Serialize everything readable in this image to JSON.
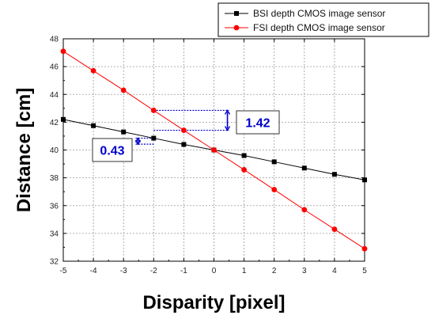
{
  "chart_data": {
    "type": "line",
    "title": "",
    "xlabel": "Disparity [pixel]",
    "ylabel": "Distance [cm]",
    "xlim": [
      -5,
      5
    ],
    "ylim": [
      32,
      48
    ],
    "xticks": [
      -5,
      -4,
      -3,
      -2,
      -1,
      0,
      1,
      2,
      3,
      4,
      5
    ],
    "yticks": [
      32,
      34,
      36,
      38,
      40,
      42,
      44,
      46,
      48
    ],
    "grid": true,
    "legend_position": "top-right",
    "x": [
      -5,
      -4,
      -3,
      -2,
      -1,
      0,
      1,
      2,
      3,
      4,
      5
    ],
    "series": [
      {
        "name": "BSI depth CMOS image sensor",
        "marker": "square",
        "color": "#000000",
        "values": [
          42.2,
          41.75,
          41.3,
          40.85,
          40.4,
          40.0,
          39.6,
          39.15,
          38.7,
          38.25,
          37.85
        ]
      },
      {
        "name": "FSI depth CMOS image sensor",
        "marker": "circle",
        "color": "#ff0000",
        "values": [
          47.1,
          45.7,
          44.3,
          42.85,
          41.42,
          40.0,
          38.58,
          37.15,
          35.7,
          34.3,
          32.9
        ]
      }
    ],
    "annotations": [
      {
        "text": "1.42",
        "color": "#0000cc",
        "bracket_x": [
          -2,
          0.5
        ],
        "bracket_y": [
          41.42,
          42.85
        ]
      },
      {
        "text": "0.43",
        "color": "#0000cc",
        "bracket_x": [
          -2.6,
          -2
        ],
        "bracket_y": [
          40.42,
          40.85
        ]
      }
    ]
  }
}
